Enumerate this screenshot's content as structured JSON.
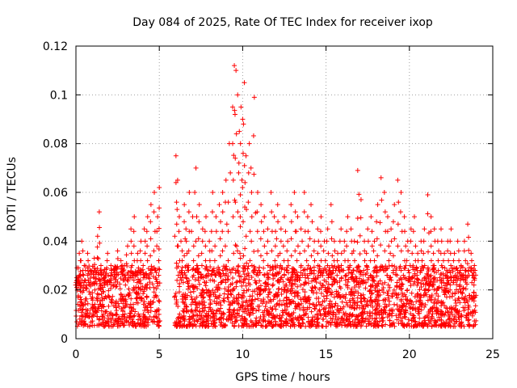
{
  "chart_data": {
    "type": "scatter",
    "title": "Day 084 of 2025, Rate Of TEC Index for receiver ixop",
    "xlabel": "GPS time / hours",
    "ylabel": "ROTI / TECUs",
    "xlim": [
      0,
      25
    ],
    "ylim": [
      0,
      0.12
    ],
    "xticks": [
      0,
      5,
      10,
      15,
      20,
      25
    ],
    "xtick_labels": [
      "0",
      "5",
      "10",
      "15",
      "20",
      "25"
    ],
    "yticks": [
      0,
      0.02,
      0.04,
      0.06,
      0.08,
      0.1,
      0.12
    ],
    "ytick_labels": [
      "0",
      "0.02",
      "0.04",
      "0.06",
      "0.08",
      "0.1",
      "0.12"
    ],
    "grid": true,
    "marker": "+",
    "marker_color": "#ff0000",
    "series": [
      {
        "name": "ROTI",
        "x": [
          0.05,
          0.2,
          0.35,
          0.5,
          0.7,
          0.9,
          1.1,
          1.3,
          1.4,
          1.5,
          1.7,
          1.9,
          2.1,
          2.3,
          2.5,
          2.7,
          2.9,
          3.1,
          3.3,
          3.5,
          3.7,
          3.9,
          4.1,
          4.3,
          4.5,
          4.7,
          4.9,
          5.0,
          6.0,
          6.1,
          6.2,
          6.3,
          6.5,
          6.6,
          6.8,
          7.0,
          7.2,
          7.4,
          7.6,
          7.8,
          8.0,
          8.2,
          8.4,
          8.6,
          8.8,
          9.0,
          9.2,
          9.4,
          9.5,
          9.6,
          9.7,
          9.8,
          9.9,
          10.0,
          10.1,
          10.2,
          10.4,
          10.5,
          10.7,
          10.9,
          11.1,
          11.3,
          11.5,
          11.7,
          11.9,
          12.1,
          12.3,
          12.5,
          12.7,
          12.9,
          13.1,
          13.3,
          13.5,
          13.7,
          13.9,
          14.1,
          14.3,
          14.5,
          14.7,
          14.9,
          15.1,
          15.3,
          15.5,
          15.7,
          15.9,
          16.1,
          16.3,
          16.5,
          16.7,
          16.9,
          17.1,
          17.3,
          17.5,
          17.7,
          17.9,
          18.1,
          18.3,
          18.5,
          18.7,
          18.9,
          19.1,
          19.3,
          19.5,
          19.7,
          19.9,
          20.1,
          20.3,
          20.5,
          20.7,
          20.9,
          21.1,
          21.3,
          21.5,
          21.7,
          21.9,
          22.1,
          22.3,
          22.5,
          22.7,
          22.9,
          23.1,
          23.3,
          23.5,
          23.7,
          23.9
        ],
        "y": [
          0.025,
          0.035,
          0.04,
          0.03,
          0.035,
          0.028,
          0.033,
          0.042,
          0.052,
          0.03,
          0.025,
          0.035,
          0.03,
          0.028,
          0.036,
          0.032,
          0.03,
          0.038,
          0.045,
          0.05,
          0.035,
          0.04,
          0.045,
          0.05,
          0.055,
          0.06,
          0.05,
          0.062,
          0.075,
          0.065,
          0.05,
          0.04,
          0.055,
          0.045,
          0.06,
          0.05,
          0.07,
          0.055,
          0.045,
          0.05,
          0.04,
          0.06,
          0.05,
          0.055,
          0.06,
          0.065,
          0.08,
          0.095,
          0.112,
          0.11,
          0.1,
          0.085,
          0.095,
          0.09,
          0.105,
          0.075,
          0.08,
          0.07,
          0.099,
          0.06,
          0.055,
          0.05,
          0.045,
          0.06,
          0.05,
          0.055,
          0.045,
          0.05,
          0.04,
          0.055,
          0.06,
          0.05,
          0.045,
          0.06,
          0.05,
          0.055,
          0.04,
          0.045,
          0.05,
          0.04,
          0.045,
          0.055,
          0.04,
          0.035,
          0.045,
          0.04,
          0.05,
          0.045,
          0.04,
          0.069,
          0.057,
          0.04,
          0.045,
          0.05,
          0.04,
          0.055,
          0.066,
          0.06,
          0.05,
          0.045,
          0.055,
          0.065,
          0.06,
          0.05,
          0.04,
          0.045,
          0.05,
          0.035,
          0.04,
          0.045,
          0.059,
          0.05,
          0.045,
          0.04,
          0.045,
          0.035,
          0.04,
          0.045,
          0.035,
          0.04,
          0.03,
          0.04,
          0.047,
          0.035,
          0.03
        ]
      }
    ],
    "point_density": {
      "note": "dense band of points from 0 to 5 and 6 to 24 hours, mostly between 0.005 and 0.03 TECUs; gap between about 5.1 and 5.9 hours",
      "segments": [
        [
          0,
          5.05
        ],
        [
          5.9,
          24.0
        ]
      ],
      "band": [
        0.005,
        0.03
      ]
    }
  }
}
